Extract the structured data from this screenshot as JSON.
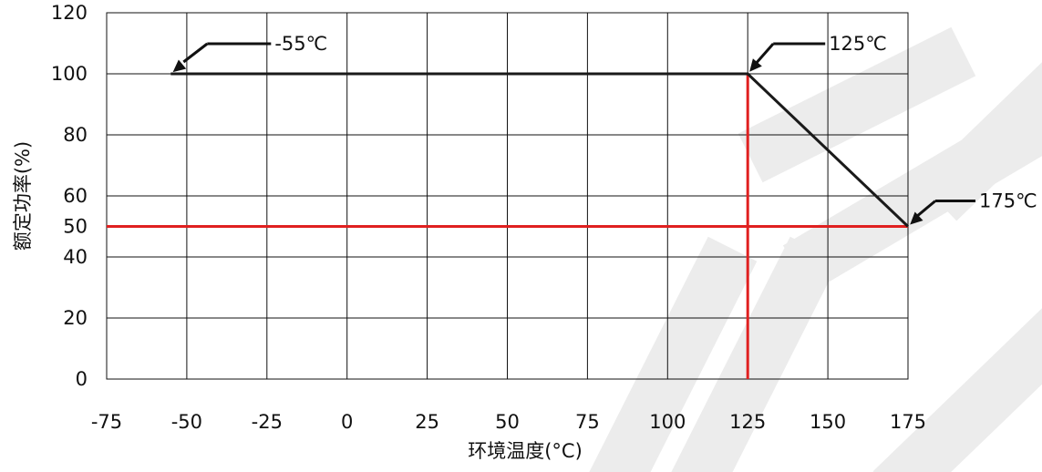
{
  "chart_data": {
    "type": "line",
    "title": "",
    "xlabel": "环境温度(°C)",
    "ylabel": "额定功率(%)",
    "xlim": [
      -75,
      175
    ],
    "ylim": [
      0,
      120
    ],
    "xticks": [
      -75,
      -50,
      -25,
      0,
      25,
      50,
      75,
      100,
      125,
      150,
      175
    ],
    "yticks": [
      0,
      20,
      40,
      50,
      60,
      80,
      100,
      120
    ],
    "grid": true,
    "series": [
      {
        "color": "#1a1a1a",
        "points": [
          [
            -55,
            100
          ],
          [
            125,
            100
          ],
          [
            175,
            50
          ]
        ]
      }
    ],
    "reference_lines": [
      {
        "orientation": "vertical",
        "x": 125,
        "y_range": [
          0,
          100
        ],
        "color": "#e02020"
      },
      {
        "orientation": "horizontal",
        "y": 50,
        "x_range": [
          -75,
          175
        ],
        "color": "#e02020"
      }
    ],
    "annotations": [
      {
        "text": "-55℃",
        "x": -55,
        "y": 100
      },
      {
        "text": "125℃",
        "x": 125,
        "y": 100
      },
      {
        "text": "175℃",
        "x": 175,
        "y": 50
      }
    ],
    "watermark_color": "#ececec"
  }
}
